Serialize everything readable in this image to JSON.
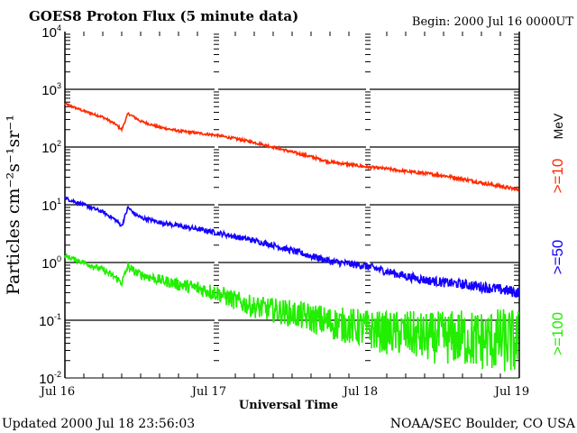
{
  "chart_data": {
    "type": "line",
    "title": "GOES8 Proton Flux (5 minute data)",
    "begin_label": "Begin: 2000 Jul 16 0000UT",
    "xlabel": "Universal Time",
    "ylabel": "Particles cm⁻²s⁻¹sr⁻¹",
    "yscale": "log",
    "ylim": [
      0.01,
      10000
    ],
    "xlim_hours": [
      0,
      72
    ],
    "x_ticks": [
      {
        "hour": 0,
        "label": "Jul 16"
      },
      {
        "hour": 24,
        "label": "Jul 17"
      },
      {
        "hour": 48,
        "label": "Jul 18"
      },
      {
        "hour": 72,
        "label": "Jul 19"
      }
    ],
    "y_ticks": [
      {
        "exp": 4,
        "base": "10",
        "sup": "4"
      },
      {
        "exp": 3,
        "base": "10",
        "sup": "3"
      },
      {
        "exp": 2,
        "base": "10",
        "sup": "2"
      },
      {
        "exp": 1,
        "base": "10",
        "sup": "1"
      },
      {
        "exp": 0,
        "base": "10",
        "sup": "0"
      },
      {
        "exp": -1,
        "base": "10",
        "sup": "-1"
      },
      {
        "exp": -2,
        "base": "10",
        "sup": "-2"
      }
    ],
    "grid": true,
    "unit_label": "MeV",
    "series": [
      {
        "name": ">=10",
        "color": "#ff2a00",
        "noise_log": [
          0.02,
          0.03
        ],
        "hours": [
          0,
          3,
          6,
          8,
          9,
          10,
          11,
          12,
          15,
          18,
          21,
          24,
          27,
          30,
          33,
          36,
          39,
          42,
          45,
          48,
          51,
          54,
          57,
          60,
          63,
          66,
          69,
          72
        ],
        "values": [
          560,
          420,
          330,
          250,
          200,
          380,
          330,
          280,
          220,
          190,
          175,
          160,
          140,
          120,
          100,
          82,
          68,
          55,
          50,
          45,
          42,
          38,
          35,
          32,
          28,
          24,
          21,
          18
        ]
      },
      {
        "name": ">=50",
        "color": "#1400ff",
        "noise_log": [
          0.03,
          0.1
        ],
        "hours": [
          0,
          3,
          6,
          8,
          9,
          10,
          11,
          12,
          15,
          18,
          21,
          24,
          27,
          30,
          33,
          36,
          39,
          42,
          45,
          48,
          51,
          54,
          57,
          60,
          63,
          66,
          69,
          72
        ],
        "values": [
          13,
          10,
          7.5,
          5.5,
          4.3,
          9,
          7,
          6,
          5,
          4.3,
          3.8,
          3.3,
          2.8,
          2.4,
          2.0,
          1.6,
          1.3,
          1.05,
          0.95,
          0.85,
          0.7,
          0.58,
          0.5,
          0.45,
          0.42,
          0.38,
          0.34,
          0.3
        ]
      },
      {
        "name": ">=100",
        "color": "#22ee00",
        "noise_log": [
          0.04,
          0.6
        ],
        "hours": [
          0,
          3,
          6,
          8,
          9,
          10,
          11,
          12,
          15,
          18,
          21,
          24,
          27,
          30,
          33,
          36,
          39,
          42,
          45,
          48,
          51,
          54,
          57,
          60,
          63,
          66,
          69,
          72
        ],
        "values": [
          1.3,
          1.0,
          0.75,
          0.55,
          0.45,
          0.85,
          0.7,
          0.62,
          0.5,
          0.42,
          0.36,
          0.3,
          0.22,
          0.17,
          0.15,
          0.13,
          0.11,
          0.09,
          0.08,
          0.07,
          0.06,
          0.06,
          0.05,
          0.05,
          0.05,
          0.045,
          0.045,
          0.04
        ]
      }
    ]
  },
  "footer": {
    "updated": "Updated 2000 Jul 18 23:56:03",
    "source": "NOAA/SEC Boulder, CO USA"
  }
}
